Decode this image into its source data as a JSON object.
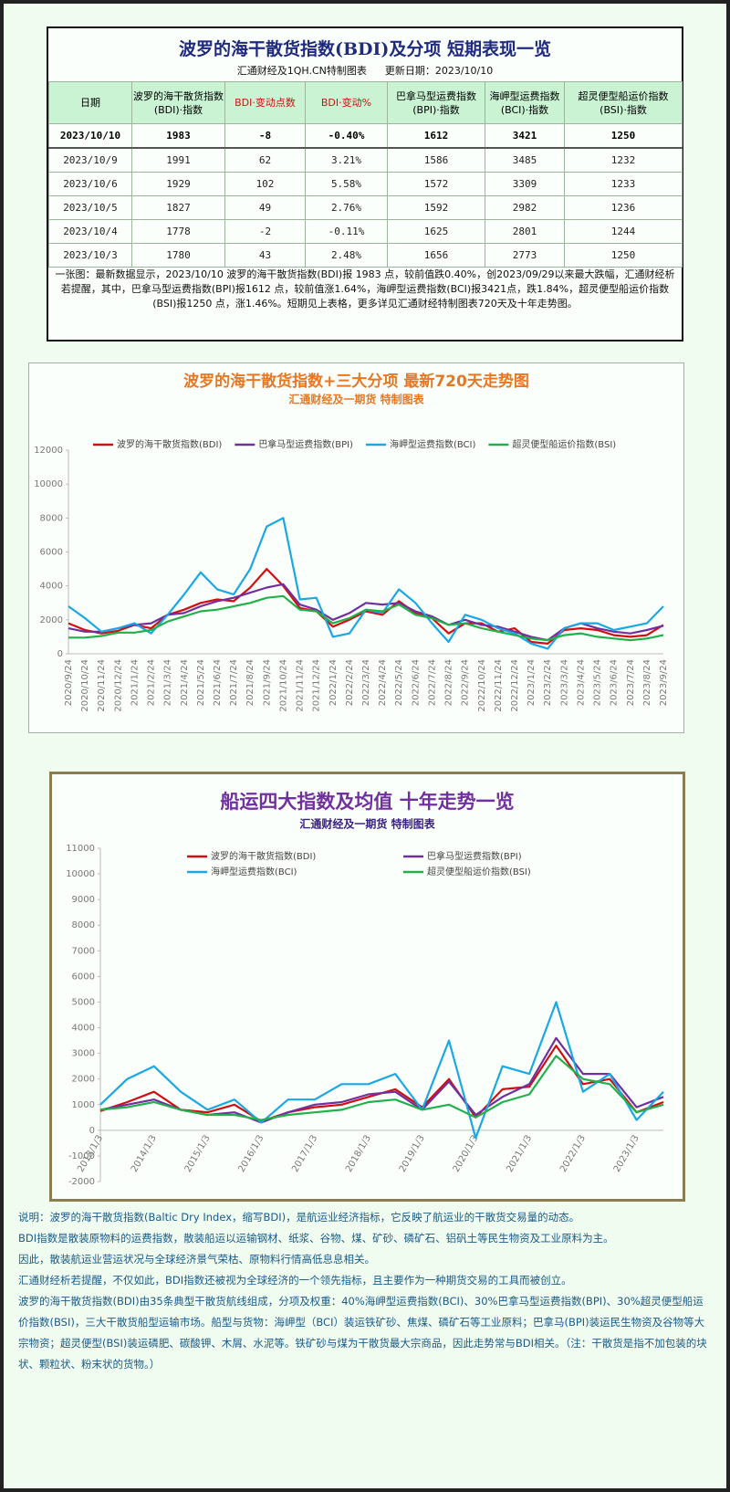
{
  "header": {
    "title": "波罗的海干散货指数(BDI)及分项  短期表现一览",
    "source": "汇通财经及1QH.CN特制图表",
    "updated": "更新日期：2023/10/10"
  },
  "table": {
    "columns": [
      "日期",
      "波罗的海干散货指数(BDI)·指数",
      "BDI·变动点数",
      "BDI·变动%",
      "巴拿马型运费指数(BPI)·指数",
      "海岬型运费指数(BCI)·指数",
      "超灵便型船运价指数(BSI)·指数"
    ],
    "rows": [
      [
        "2023/10/10",
        "1983",
        "-8",
        "-0.40%",
        "1612",
        "3421",
        "1250"
      ],
      [
        "2023/10/9",
        "1991",
        "62",
        "3.21%",
        "1586",
        "3485",
        "1232"
      ],
      [
        "2023/10/6",
        "1929",
        "102",
        "5.58%",
        "1572",
        "3309",
        "1233"
      ],
      [
        "2023/10/5",
        "1827",
        "49",
        "2.76%",
        "1592",
        "2982",
        "1236"
      ],
      [
        "2023/10/4",
        "1778",
        "-2",
        "-0.11%",
        "1625",
        "2801",
        "1244"
      ],
      [
        "2023/10/3",
        "1780",
        "43",
        "2.48%",
        "1656",
        "2773",
        "1250"
      ]
    ]
  },
  "summary": "一张图：最新数据显示，2023/10/10 波罗的海干散货指数(BDI)报 1983 点，较前值跌0.40%，创2023/09/29以来最大跌幅，汇通财经析若提醒，其中，巴拿马型运费指数(BPI)报1612 点，较前值涨1.64%，海岬型运费指数(BCI)报3421点，跌1.84%，超灵便型船运价指数(BSI)报1250 点，涨1.46%。短期见上表格，更多详见汇通财经特制图表720天及十年走势图。",
  "chart_data": [
    {
      "type": "line",
      "title": "波罗的海干散货指数+三大分项 最新720天走势图",
      "subtitle": "汇通财经及一期货 特制图表",
      "categories": [
        "2020/9/24",
        "2020/10/24",
        "2020/11/24",
        "2020/12/24",
        "2021/1/24",
        "2021/2/24",
        "2021/3/24",
        "2021/4/24",
        "2021/5/24",
        "2021/6/24",
        "2021/7/24",
        "2021/8/24",
        "2021/9/24",
        "2021/10/24",
        "2021/11/24",
        "2021/12/24",
        "2022/1/24",
        "2022/2/24",
        "2022/3/24",
        "2022/4/24",
        "2022/5/24",
        "2022/6/24",
        "2022/7/24",
        "2022/8/24",
        "2022/9/24",
        "2022/10/24",
        "2022/11/24",
        "2022/12/24",
        "2023/1/24",
        "2023/2/24",
        "2023/3/24",
        "2023/4/24",
        "2023/5/24",
        "2023/6/24",
        "2023/7/24",
        "2023/8/24",
        "2023/9/24"
      ],
      "ylim": [
        0,
        12000
      ],
      "yticks": [
        0,
        2000,
        4000,
        6000,
        8000,
        10000,
        12000
      ],
      "grid": false,
      "series": [
        {
          "name": "波罗的海干散货指数(BDI)",
          "color": "#d01010",
          "values": [
            1800,
            1400,
            1200,
            1350,
            1700,
            1500,
            2300,
            2600,
            3000,
            3200,
            3100,
            3900,
            5000,
            4000,
            2700,
            2500,
            1600,
            2000,
            2500,
            2300,
            3100,
            2400,
            2100,
            1200,
            1800,
            1800,
            1300,
            1500,
            700,
            600,
            1400,
            1500,
            1400,
            1100,
            1000,
            1100,
            1700
          ]
        },
        {
          "name": "巴拿马型运费指数(BPI)",
          "color": "#7030a0",
          "values": [
            1500,
            1300,
            1300,
            1500,
            1700,
            1800,
            2300,
            2400,
            2800,
            3100,
            3300,
            3600,
            3900,
            4100,
            2900,
            2600,
            2000,
            2400,
            3000,
            2900,
            3000,
            2500,
            2200,
            1700,
            2000,
            1700,
            1600,
            1300,
            1000,
            800,
            1500,
            1800,
            1500,
            1300,
            1200,
            1400,
            1650
          ]
        },
        {
          "name": "海岬型运费指数(BCI)",
          "color": "#1aa7e6",
          "values": [
            2800,
            2100,
            1300,
            1500,
            1800,
            1200,
            2300,
            3500,
            4800,
            3800,
            3500,
            5000,
            7500,
            8000,
            3200,
            3300,
            1000,
            1200,
            2600,
            2400,
            3800,
            3000,
            1800,
            700,
            2300,
            2000,
            1500,
            1200,
            600,
            300,
            1500,
            1800,
            1800,
            1400,
            1600,
            1800,
            2800
          ]
        },
        {
          "name": "超灵便型船运价指数(BSI)",
          "color": "#22b04b",
          "values": [
            950,
            950,
            1050,
            1250,
            1250,
            1400,
            1900,
            2200,
            2500,
            2600,
            2800,
            3000,
            3300,
            3400,
            2600,
            2500,
            1800,
            2100,
            2600,
            2500,
            2900,
            2300,
            2100,
            1700,
            1800,
            1500,
            1300,
            1100,
            900,
            800,
            1100,
            1200,
            1000,
            900,
            800,
            900,
            1100
          ]
        }
      ]
    },
    {
      "type": "line",
      "title": "船运四大指数及均值 十年走势一览",
      "subtitle": "汇通财经及一期货 特制图表",
      "categories": [
        "2013/1/3",
        null,
        "2014/1/3",
        null,
        "2015/1/3",
        null,
        "2016/1/3",
        null,
        "2017/1/3",
        null,
        "2018/1/3",
        null,
        "2019/1/3",
        null,
        "2020/1/3",
        null,
        "2021/1/3",
        null,
        "2022/1/3",
        null,
        "2023/1/3",
        null
      ],
      "ylim": [
        -2000,
        11000
      ],
      "yticks": [
        -2000,
        -1000,
        0,
        1000,
        2000,
        3000,
        4000,
        5000,
        6000,
        7000,
        8000,
        9000,
        10000,
        11000
      ],
      "grid": false,
      "series": [
        {
          "name": "波罗的海干散货指数(BDI)",
          "color": "#d01010",
          "values": [
            750,
            1100,
            1500,
            800,
            700,
            1000,
            350,
            700,
            900,
            1000,
            1300,
            1600,
            900,
            2000,
            500,
            1600,
            1700,
            3300,
            1800,
            2000,
            700,
            1100
          ]
        },
        {
          "name": "巴拿马型运费指数(BPI)",
          "color": "#7030a0",
          "values": [
            800,
            1000,
            1200,
            800,
            600,
            700,
            300,
            700,
            1000,
            1100,
            1400,
            1500,
            800,
            1900,
            600,
            1300,
            1800,
            3600,
            2200,
            2200,
            900,
            1300
          ]
        },
        {
          "name": "海岬型运费指数(BCI)",
          "color": "#1aa7e6",
          "values": [
            1000,
            2000,
            2500,
            1500,
            800,
            1200,
            300,
            1200,
            1200,
            1800,
            1800,
            2200,
            800,
            3500,
            -300,
            2500,
            2200,
            5000,
            1500,
            2200,
            400,
            1500
          ]
        },
        {
          "name": "超灵便型船运价指数(BSI)",
          "color": "#22b04b",
          "values": [
            800,
            900,
            1100,
            800,
            600,
            600,
            400,
            600,
            700,
            800,
            1100,
            1200,
            800,
            1000,
            500,
            1100,
            1400,
            2900,
            2000,
            1800,
            700,
            1000
          ]
        }
      ]
    }
  ],
  "notes": [
    "说明：波罗的海干散货指数(Baltic Dry Index，缩写BDI)，是航运业经济指标，它反映了航运业的干散货交易量的动态。",
    "BDI指数是散装原物料的运费指数，散装船运以运输钢材、纸浆、谷物、煤、矿砂、磷矿石、铝矾土等民生物资及工业原料为主。",
    "因此，散装航运业营运状况与全球经济景气荣枯、原物料行情高低息息相关。",
    "汇通财经析若提醒，不仅如此，BDI指数还被视为全球经济的一个领先指标，且主要作为一种期货交易的工具而被创立。",
    "波罗的海干散货指数(BDI)由35条典型干散货航线组成，分项及权重：40%海岬型运费指数(BCI)、30%巴拿马型运费指数(BPI)、30%超灵便型船运价指数(BSI)，三大干散货船型运输市场。船型与货物：海岬型（BCI）装运铁矿砂、焦煤、磷矿石等工业原料；巴拿马(BPI)装运民生物资及谷物等大宗物资；超灵便型(BSI)装运磷肥、碳酸钾、木屑、水泥等。铁矿砂与煤为干散货最大宗商品，因此走势常与BDI相关。（注：干散货是指不加包装的块状、颗粒状、粉末状的货物。）"
  ]
}
